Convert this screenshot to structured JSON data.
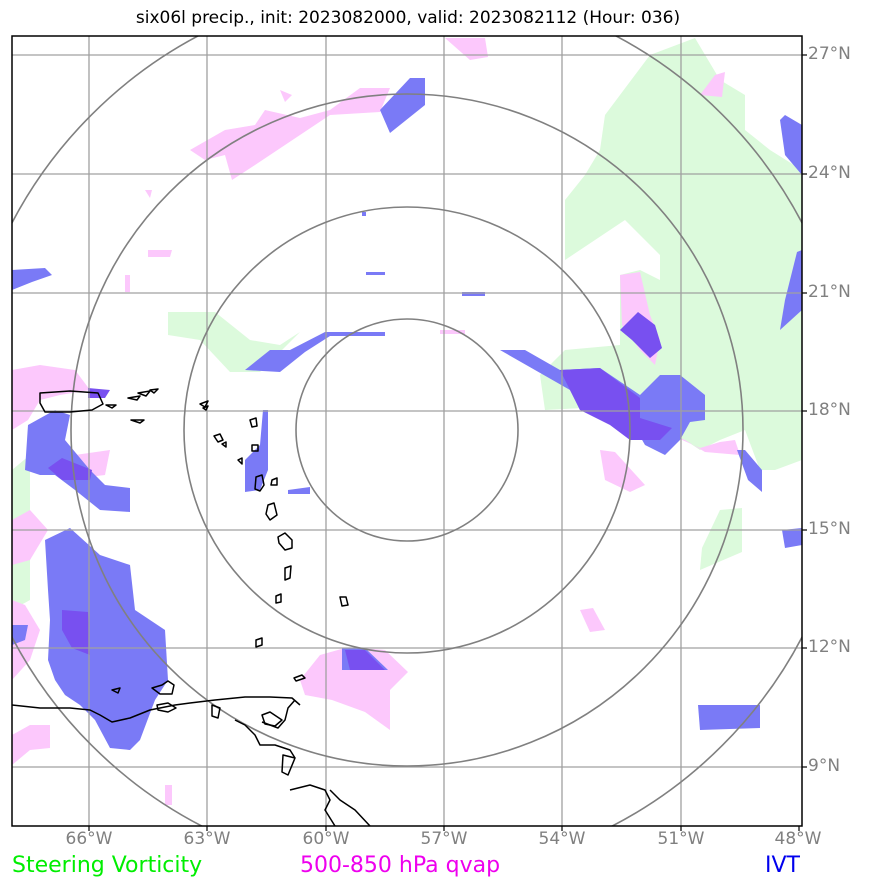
{
  "title": "six06l precip., init: 2023082000, valid: 2023082112 (Hour: 036)",
  "lat_labels": [
    "27°N",
    "24°N",
    "21°N",
    "18°N",
    "15°N",
    "12°N",
    "9°N"
  ],
  "lon_labels": [
    "66°W",
    "63°W",
    "60°W",
    "57°W",
    "54°W",
    "51°W",
    "48°W"
  ],
  "legend": {
    "vorticity": {
      "label": "Steering Vorticity",
      "color": "#00ee00"
    },
    "qvap": {
      "label": "500-850 hPa qvap",
      "color": "#ee00ee"
    },
    "ivt": {
      "label": "IVT",
      "color": "#0000ee"
    }
  },
  "fill_colors": {
    "vorticity": "#dcfadc",
    "qvap": "#fcc8fc",
    "ivt": "#7a7af6",
    "overlap": "#7850f0"
  }
}
